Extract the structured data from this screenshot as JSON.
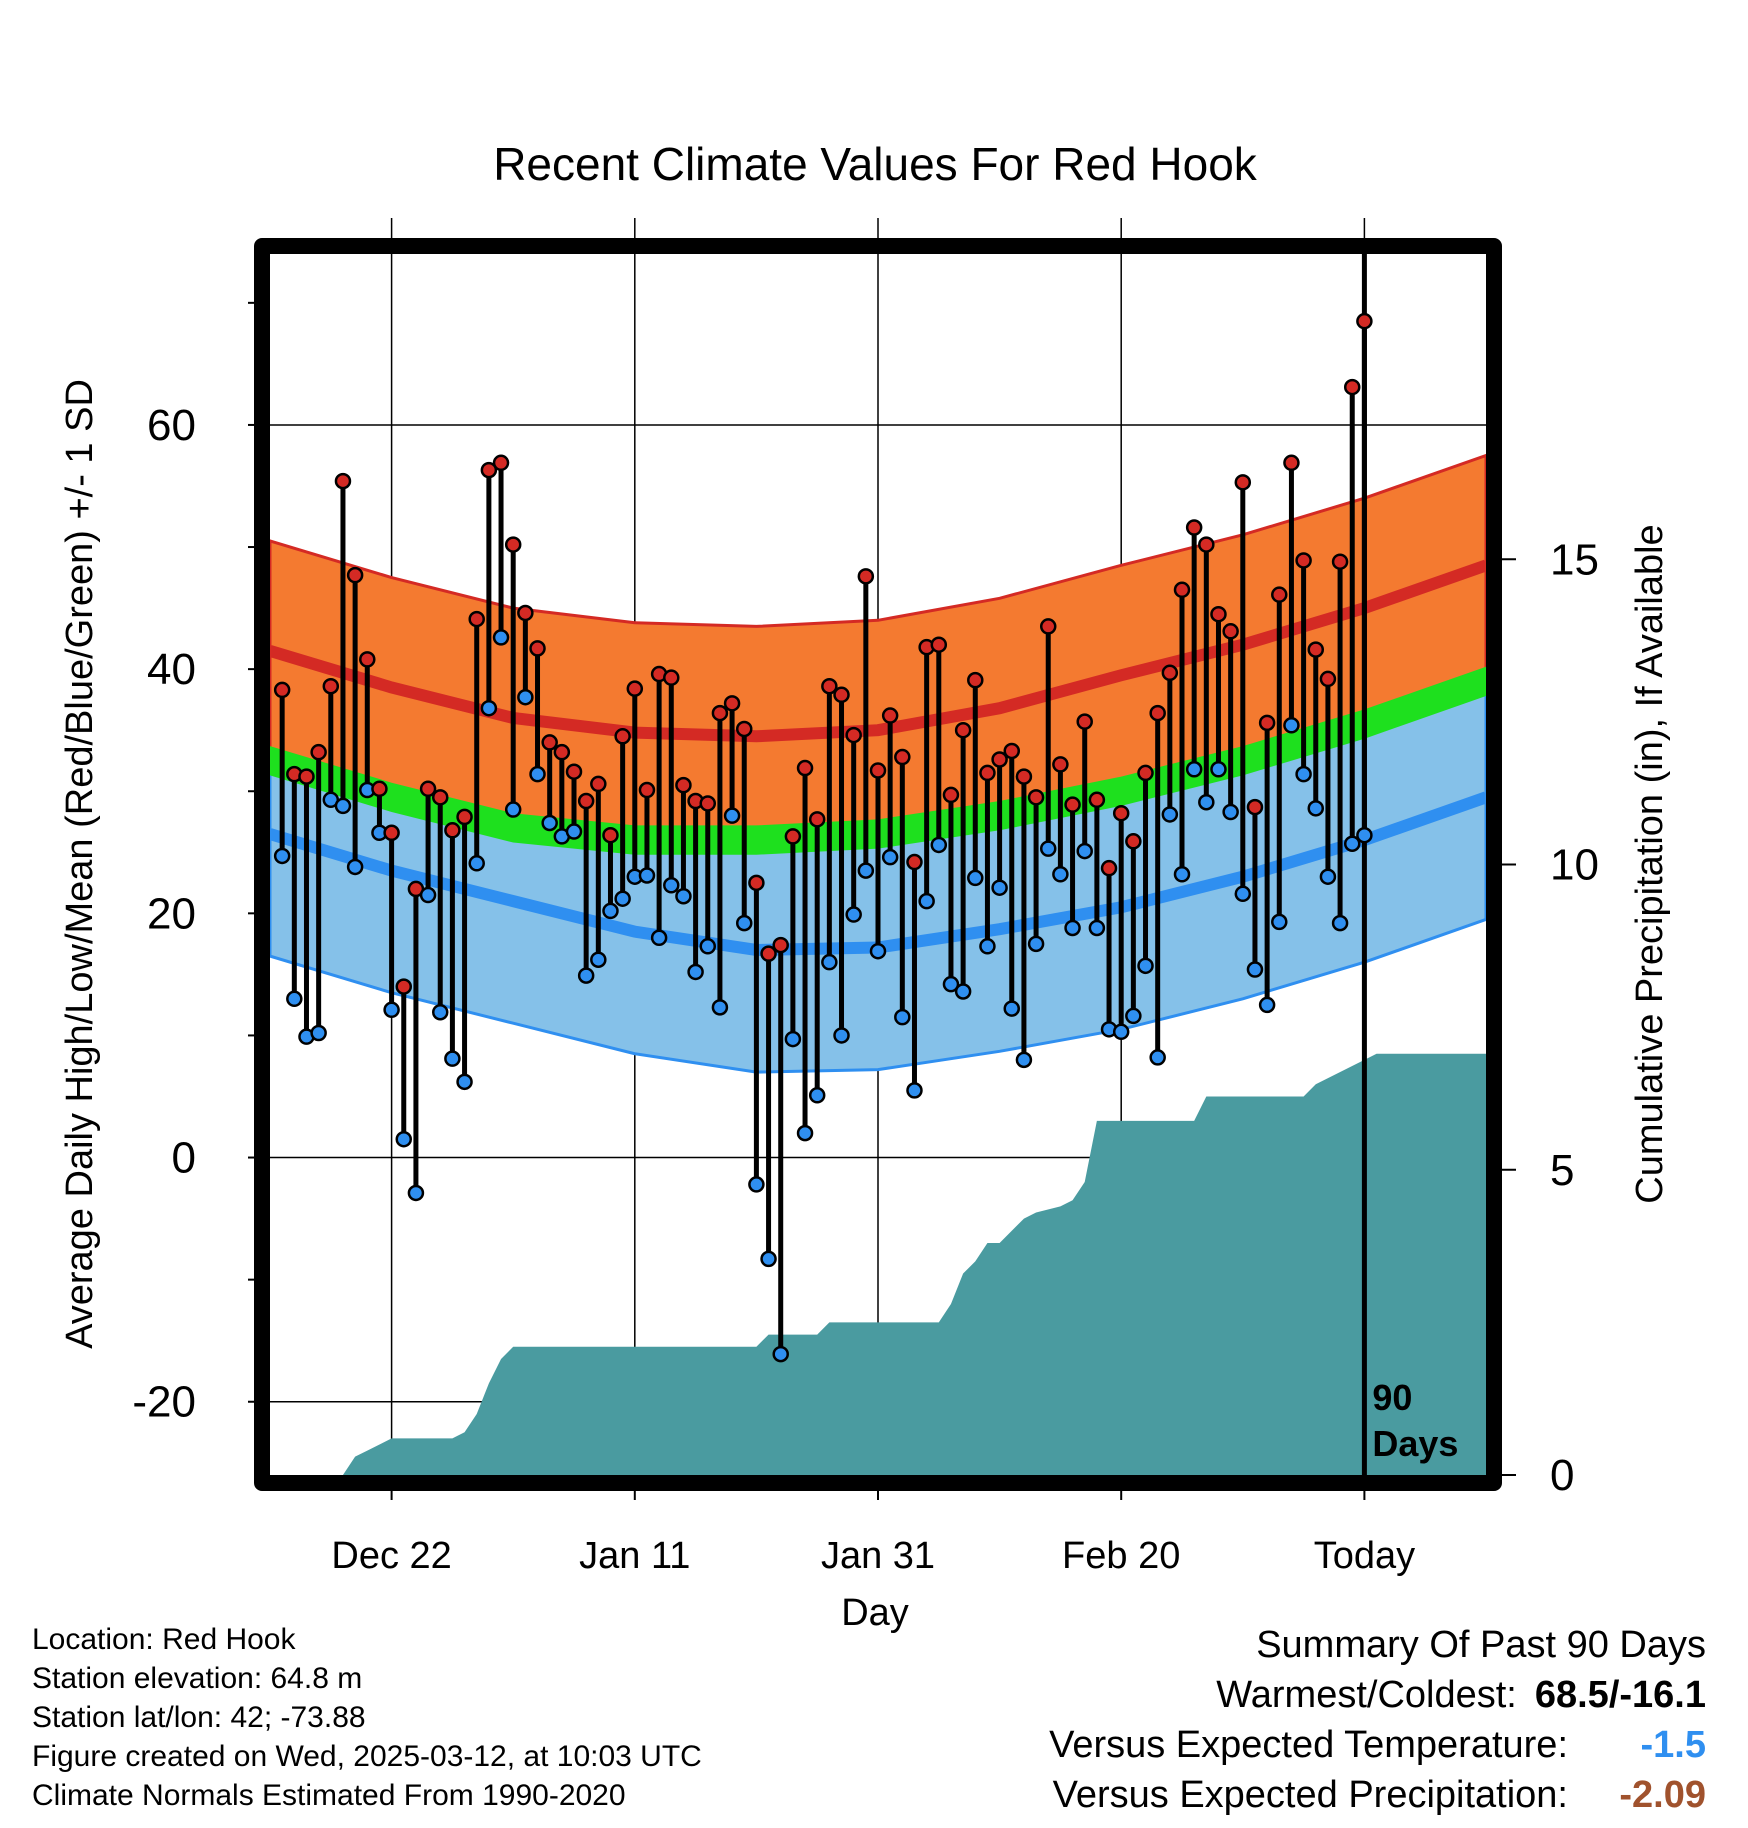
{
  "colors": {
    "background": "#ffffff",
    "high_band": "#f47a30",
    "high_normal_line": "#d42a24",
    "low_band": "#85c1e9",
    "low_normal_line": "#2f8ff0",
    "mean_band": "#1ee01e",
    "mean_overlap": "#9a1414",
    "high_marker": "#d42a24",
    "low_marker": "#2f8ff0",
    "precip_fill": "#4a9ba0",
    "temp_departure": "#2f8ff0",
    "precip_departure": "#a0522d"
  },
  "chart_data": {
    "type": "line",
    "title": "Recent Climate Values For Red Hook",
    "xlabel": "Day",
    "ylabel": "Average Daily High/Low/Mean (Red/Blue/Green) +/- 1 SD",
    "y2label": "Cumulative Precipitation (in), If Available",
    "xlim": [
      -10,
      90
    ],
    "ylim": [
      -26,
      74
    ],
    "y2lim": [
      0,
      20
    ],
    "grid": true,
    "x_ticks": [
      {
        "value": 0,
        "label": "Dec 22"
      },
      {
        "value": 20,
        "label": "Jan 11"
      },
      {
        "value": 40,
        "label": "Jan 31"
      },
      {
        "value": 60,
        "label": "Feb 20"
      },
      {
        "value": 80,
        "label": "Today"
      }
    ],
    "y_ticks": [
      -20,
      0,
      20,
      40,
      60
    ],
    "y2_ticks": [
      0,
      5,
      10,
      15
    ],
    "today_index": 80,
    "today_marker_label": [
      "90",
      "Days"
    ],
    "normals": {
      "x": [
        -10,
        0,
        10,
        20,
        30,
        40,
        50,
        60,
        70,
        80,
        90
      ],
      "high_mean": [
        41.5,
        38.5,
        36.0,
        34.8,
        34.5,
        35.0,
        36.8,
        39.5,
        42.0,
        45.0,
        48.5
      ],
      "high_sd": 9,
      "low_mean": [
        26.5,
        23.5,
        21.0,
        18.5,
        17.0,
        17.2,
        18.7,
        20.5,
        23.0,
        26.0,
        29.5
      ],
      "low_sd": 10,
      "mean_mean": [
        32.5,
        29.5,
        27.0,
        26.0,
        26.0,
        26.5,
        28.0,
        30.0,
        32.5,
        35.5,
        39.0
      ],
      "mean_sd": 1.2
    },
    "series": [
      {
        "name": "Daily High",
        "color": "#d42a24",
        "values": [
          38.3,
          31.4,
          31.2,
          33.2,
          38.6,
          55.4,
          47.7,
          40.8,
          30.2,
          26.6,
          14.0,
          22.0,
          30.2,
          29.5,
          26.8,
          27.9,
          44.1,
          56.3,
          56.9,
          50.2,
          44.6,
          41.7,
          34.0,
          33.2,
          31.6,
          29.2,
          30.6,
          26.4,
          34.5,
          38.4,
          30.1,
          39.6,
          39.3,
          30.5,
          29.2,
          29.0,
          36.4,
          37.2,
          35.1,
          22.5,
          16.7,
          17.4,
          26.3,
          31.9,
          27.7,
          38.6,
          37.9,
          34.6,
          47.6,
          31.7,
          36.2,
          32.8,
          24.2,
          41.8,
          42.0,
          29.7,
          35.0,
          39.1,
          31.5,
          32.6,
          33.3,
          31.2,
          29.5,
          43.5,
          32.2,
          28.9,
          35.7,
          29.3,
          23.7,
          28.2,
          25.9,
          31.5,
          36.4,
          39.7,
          46.5,
          51.6,
          50.2,
          44.5,
          43.1,
          55.3,
          28.7,
          35.6,
          46.1,
          56.9,
          48.9,
          41.6,
          39.2,
          48.8,
          63.1,
          68.5
        ]
      },
      {
        "name": "Daily Low",
        "color": "#2f8ff0",
        "values": [
          24.7,
          13.0,
          9.9,
          10.2,
          29.3,
          28.8,
          23.8,
          30.1,
          26.6,
          12.1,
          1.5,
          -2.9,
          21.5,
          11.9,
          8.1,
          6.2,
          24.1,
          36.8,
          42.6,
          28.5,
          37.7,
          31.4,
          27.4,
          26.3,
          26.7,
          14.9,
          16.2,
          20.2,
          21.2,
          23.0,
          23.1,
          18.0,
          22.3,
          21.4,
          15.2,
          17.3,
          12.3,
          28.0,
          19.2,
          -2.2,
          -8.3,
          -16.1,
          9.7,
          2.0,
          5.1,
          16.0,
          10.0,
          19.9,
          23.5,
          16.9,
          24.6,
          11.5,
          5.5,
          21.0,
          25.6,
          14.2,
          13.6,
          22.9,
          17.3,
          22.1,
          12.2,
          8.0,
          17.5,
          25.3,
          23.2,
          18.8,
          25.1,
          18.8,
          10.5,
          10.3,
          11.6,
          15.7,
          8.2,
          28.1,
          23.2,
          31.8,
          29.1,
          31.8,
          28.3,
          21.6,
          15.4,
          12.5,
          19.3,
          35.4,
          31.4,
          28.6,
          23.0,
          19.2,
          25.7,
          26.4
        ]
      }
    ],
    "precip_cumulative": {
      "x": [
        -10,
        -4,
        -3,
        -2,
        0,
        5,
        6,
        7,
        8,
        9,
        10,
        20,
        30,
        31,
        35,
        36,
        39,
        40,
        45,
        46,
        47,
        48,
        49,
        50,
        52,
        53,
        55,
        56,
        57,
        58,
        66,
        67,
        75,
        76,
        80,
        81,
        90
      ],
      "values": [
        0.0,
        0.0,
        0.3,
        0.4,
        0.6,
        0.6,
        0.7,
        1.0,
        1.5,
        1.9,
        2.1,
        2.1,
        2.1,
        2.3,
        2.3,
        2.5,
        2.5,
        2.5,
        2.5,
        2.8,
        3.3,
        3.5,
        3.8,
        3.8,
        4.2,
        4.3,
        4.4,
        4.5,
        4.8,
        5.8,
        5.8,
        6.2,
        6.2,
        6.4,
        6.8,
        6.9,
        6.9
      ]
    }
  },
  "info": {
    "location": "Location: Red Hook",
    "elevation": "Station elevation: 64.8 m",
    "latlon": "Station lat/lon: 42; -73.88",
    "created": "Figure created on Wed, 2025-03-12, at 10:03 UTC",
    "normals": "Climate Normals Estimated From 1990-2020"
  },
  "summary": {
    "title": "Summary Of Past 90 Days",
    "warm_cold_label": "Warmest/Coldest:",
    "warm_cold_value": "68.5/-16.1",
    "temp_label": "Versus Expected Temperature:",
    "temp_value": "-1.5",
    "precip_label": "Versus Expected Precipitation:",
    "precip_value": "-2.09"
  }
}
